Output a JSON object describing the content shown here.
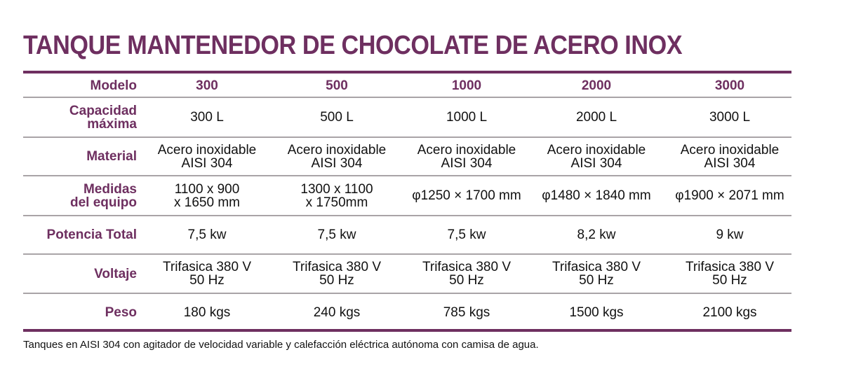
{
  "title": "TANQUE MANTENEDOR DE CHOCOLATE DE ACERO INOX",
  "table": {
    "header": {
      "label": "Modelo",
      "cells": [
        "300",
        "500",
        "1000",
        "2000",
        "3000"
      ]
    },
    "rows": [
      {
        "label": [
          "Capacidad",
          "máxima"
        ],
        "cells": [
          [
            "300 L"
          ],
          [
            "500 L"
          ],
          [
            "1000 L"
          ],
          [
            "2000 L"
          ],
          [
            "3000 L"
          ]
        ]
      },
      {
        "label": [
          "Material"
        ],
        "cells": [
          [
            "Acero inoxidable",
            "AISI 304"
          ],
          [
            "Acero inoxidable",
            "AISI 304"
          ],
          [
            "Acero inoxidable",
            "AISI 304"
          ],
          [
            "Acero inoxidable",
            "AISI 304"
          ],
          [
            "Acero inoxidable",
            "AISI 304"
          ]
        ]
      },
      {
        "label": [
          "Medidas",
          "del equipo"
        ],
        "cells": [
          [
            "1100 x 900",
            "x 1650 mm"
          ],
          [
            "1300 x 1100",
            "x 1750mm"
          ],
          [
            "φ1250 × 1700 mm"
          ],
          [
            "φ1480 × 1840 mm"
          ],
          [
            "φ1900 × 2071 mm"
          ]
        ]
      },
      {
        "label": [
          "Potencia Total"
        ],
        "cells": [
          [
            "7,5 kw"
          ],
          [
            "7,5 kw"
          ],
          [
            "7,5 kw"
          ],
          [
            "8,2 kw"
          ],
          [
            "9 kw"
          ]
        ]
      },
      {
        "label": [
          "Voltaje"
        ],
        "cells": [
          [
            "Trifasica 380 V",
            "50 Hz"
          ],
          [
            "Trifasica 380 V",
            "50 Hz"
          ],
          [
            "Trifasica 380 V",
            "50 Hz"
          ],
          [
            "Trifasica 380 V",
            "50 Hz"
          ],
          [
            "Trifasica 380 V",
            "50 Hz"
          ]
        ]
      },
      {
        "label": [
          "Peso"
        ],
        "cells": [
          [
            "180 kgs"
          ],
          [
            "240 kgs"
          ],
          [
            "785 kgs"
          ],
          [
            "1500 kgs"
          ],
          [
            "2100 kgs"
          ]
        ]
      }
    ]
  },
  "footnote": "Tanques en AISI 304 con agitador de velocidad variable y calefacción eléctrica autónoma con camisa de agua."
}
